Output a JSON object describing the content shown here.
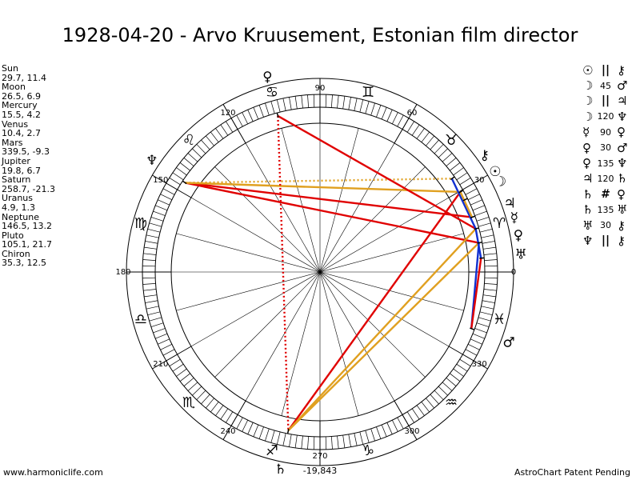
{
  "title": "1928-04-20 - Arvo Kruusement, Estonian film director",
  "footer": {
    "left": "www.harmoniclife.com",
    "right": "AstroChart Patent Pending"
  },
  "planets": [
    {
      "name": "Sun",
      "coords": "29.7, 11.4",
      "lon": 29.7,
      "glyph": "☉"
    },
    {
      "name": "Moon",
      "coords": "26.5, 6.9",
      "lon": 26.5,
      "glyph": "☽"
    },
    {
      "name": "Mercury",
      "coords": "15.5, 4.2",
      "lon": 15.5,
      "glyph": "☿"
    },
    {
      "name": "Venus",
      "coords": "10.4, 2.7",
      "lon": 10.4,
      "glyph": "♀"
    },
    {
      "name": "Mars",
      "coords": "339.5, -9.3",
      "lon": 339.5,
      "glyph": "♂"
    },
    {
      "name": "Jupiter",
      "coords": "19.8, 6.7",
      "lon": 19.8,
      "glyph": "♃"
    },
    {
      "name": "Saturn",
      "coords": "258.7, -21.3",
      "lon": 258.7,
      "glyph": "♄"
    },
    {
      "name": "Uranus",
      "coords": "4.9, 1.3",
      "lon": 4.9,
      "glyph": "♅"
    },
    {
      "name": "Neptune",
      "coords": "146.5, 13.2",
      "lon": 146.5,
      "glyph": "♆"
    },
    {
      "name": "Pluto",
      "coords": "105.1, 21.7",
      "lon": 105.1,
      "glyph": "♀"
    },
    {
      "name": "Chiron",
      "coords": "35.3, 12.5",
      "lon": 35.3,
      "glyph": "⚷"
    }
  ],
  "aspects": [
    {
      "p1": "☉",
      "aspect": "||",
      "p2": "⚷"
    },
    {
      "p1": "☽",
      "aspect": "45",
      "p2": "♂"
    },
    {
      "p1": "☽",
      "aspect": "||",
      "p2": "♃"
    },
    {
      "p1": "☽",
      "aspect": "120",
      "p2": "♆"
    },
    {
      "p1": "☿",
      "aspect": "90",
      "p2": "♀"
    },
    {
      "p1": "♀",
      "aspect": "30",
      "p2": "♂"
    },
    {
      "p1": "♀",
      "aspect": "135",
      "p2": "♆"
    },
    {
      "p1": "♃",
      "aspect": "120",
      "p2": "♄"
    },
    {
      "p1": "♄",
      "aspect": "#",
      "p2": "♀"
    },
    {
      "p1": "♄",
      "aspect": "135",
      "p2": "♅"
    },
    {
      "p1": "♅",
      "aspect": "30",
      "p2": "⚷"
    },
    {
      "p1": "♆",
      "aspect": "||",
      "p2": "⚷"
    }
  ],
  "chart_data": {
    "type": "astrological-wheel",
    "degree_labels": [
      "0",
      "30",
      "60",
      "90",
      "120",
      "150",
      "180",
      "210",
      "240",
      "270",
      "300",
      "330"
    ],
    "zodiac_signs": [
      {
        "glyph": "♈",
        "lon": 15
      },
      {
        "glyph": "♉",
        "lon": 45
      },
      {
        "glyph": "♊",
        "lon": 75
      },
      {
        "glyph": "♋",
        "lon": 105
      },
      {
        "glyph": "♌",
        "lon": 135
      },
      {
        "glyph": "♍",
        "lon": 165
      },
      {
        "glyph": "♎",
        "lon": 195
      },
      {
        "glyph": "♏",
        "lon": 225
      },
      {
        "glyph": "♐",
        "lon": 255
      },
      {
        "glyph": "♑",
        "lon": 285
      },
      {
        "glyph": "♒",
        "lon": 315
      },
      {
        "glyph": "♓",
        "lon": 345
      }
    ],
    "bottom_value": "-19,843",
    "aspect_lines": [
      {
        "from": 146.5,
        "to": 19.8,
        "color": "#e00000",
        "style": "solid"
      },
      {
        "from": 146.5,
        "to": 10.4,
        "color": "#e00000",
        "style": "solid"
      },
      {
        "from": 146.5,
        "to": 29.7,
        "color": "#e0a020",
        "style": "solid"
      },
      {
        "from": 146.5,
        "to": 35.3,
        "color": "#e0a020",
        "style": "dotted"
      },
      {
        "from": 105.1,
        "to": 15.5,
        "color": "#e00000",
        "style": "solid"
      },
      {
        "from": 105.1,
        "to": 258.7,
        "color": "#e00000",
        "style": "dotted"
      },
      {
        "from": 258.7,
        "to": 29.7,
        "color": "#e00000",
        "style": "solid"
      },
      {
        "from": 258.7,
        "to": 10.4,
        "color": "#e0a020",
        "style": "solid"
      },
      {
        "from": 258.7,
        "to": 15.5,
        "color": "#e0a020",
        "style": "solid"
      },
      {
        "from": 35.3,
        "to": 15.5,
        "color": "#1030d0",
        "style": "solid"
      },
      {
        "from": 15.5,
        "to": 4.9,
        "color": "#1030d0",
        "style": "solid"
      },
      {
        "from": 10.4,
        "to": 339.5,
        "color": "#1030d0",
        "style": "solid"
      },
      {
        "from": 4.9,
        "to": 339.5,
        "color": "#e00000",
        "style": "solid"
      },
      {
        "from": 29.7,
        "to": 19.8,
        "color": "#e0a020",
        "style": "solid"
      }
    ],
    "colors": {
      "red": "#e00000",
      "orange": "#e0a020",
      "blue": "#1030d0"
    }
  }
}
